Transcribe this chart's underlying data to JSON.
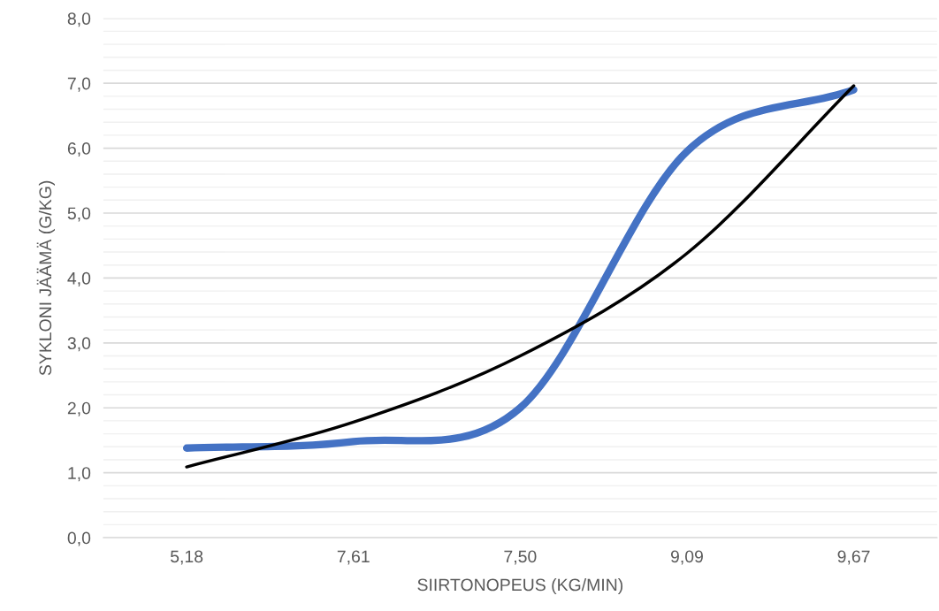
{
  "chart_data": {
    "type": "line",
    "xlabel": "SIIRTONOPEUS (KG/MIN)",
    "ylabel": "SYKLONI JÄÄMÄ (G/KG)",
    "categories": [
      "5,18",
      "7,61",
      "7,50",
      "9,09",
      "9,67"
    ],
    "series": [
      {
        "color": "#4472c4",
        "values": [
          1.38,
          1.48,
          2.0,
          5.95,
          6.9
        ]
      },
      {
        "type": "line",
        "color": "#000000",
        "values": [
          1.09,
          1.78,
          2.8,
          4.38,
          6.96
        ]
      }
    ],
    "ylim": [
      0,
      8
    ],
    "yticks": [
      {
        "value": 0,
        "label": "0,0"
      },
      {
        "value": 0.2,
        "label": null
      },
      {
        "value": 0.4,
        "label": null
      },
      {
        "value": 0.6,
        "label": null
      },
      {
        "value": 0.8,
        "label": null
      },
      {
        "value": 1,
        "label": "1,0"
      },
      {
        "value": 1.2,
        "label": null
      },
      {
        "value": 1.4,
        "label": null
      },
      {
        "value": 1.6,
        "label": null
      },
      {
        "value": 1.8,
        "label": null
      },
      {
        "value": 2,
        "label": "2,0"
      },
      {
        "value": 2.2,
        "label": null
      },
      {
        "value": 2.4,
        "label": null
      },
      {
        "value": 2.6,
        "label": null
      },
      {
        "value": 2.8,
        "label": null
      },
      {
        "value": 3,
        "label": "3,0"
      },
      {
        "value": 3.2,
        "label": null
      },
      {
        "value": 3.4,
        "label": null
      },
      {
        "value": 3.6,
        "label": null
      },
      {
        "value": 3.8,
        "label": null
      },
      {
        "value": 4,
        "label": "4,0"
      },
      {
        "value": 4.2,
        "label": null
      },
      {
        "value": 4.4,
        "label": null
      },
      {
        "value": 4.6,
        "label": null
      },
      {
        "value": 4.8,
        "label": null
      },
      {
        "value": 5,
        "label": "5,0"
      },
      {
        "value": 5.2,
        "label": null
      },
      {
        "value": 5.4,
        "label": null
      },
      {
        "value": 5.6,
        "label": null
      },
      {
        "value": 5.8,
        "label": null
      },
      {
        "value": 6,
        "label": "6,0"
      },
      {
        "value": 6.2,
        "label": null
      },
      {
        "value": 6.4,
        "label": null
      },
      {
        "value": 6.6,
        "label": null
      },
      {
        "value": 6.8,
        "label": null
      },
      {
        "value": 7,
        "label": "7,0"
      },
      {
        "value": 7.2,
        "label": null
      },
      {
        "value": 7.4,
        "label": null
      },
      {
        "value": 7.6,
        "label": null
      },
      {
        "value": 7.8,
        "label": null
      },
      {
        "value": 8,
        "label": "8,0"
      }
    ],
    "grid": "y"
  }
}
